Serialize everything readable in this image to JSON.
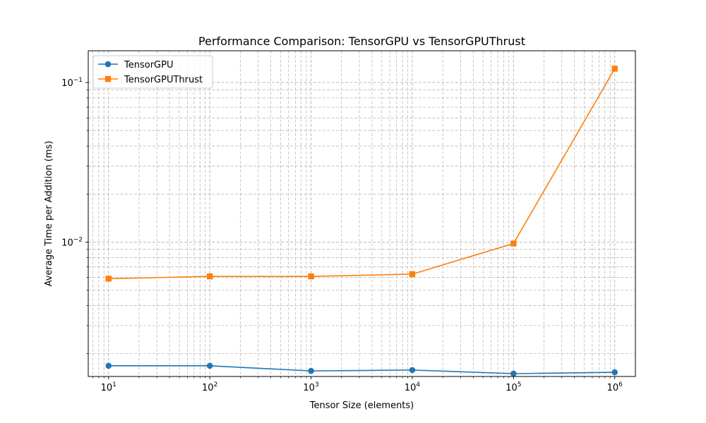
{
  "chart_data": {
    "type": "line",
    "title": "Performance Comparison: TensorGPU vs TensorGPUThrust",
    "xlabel": "Tensor Size (elements)",
    "ylabel": "Average Time per Addition (ms)",
    "x_scale": "log",
    "y_scale": "log",
    "xlim": [
      6.3,
      1600000
    ],
    "ylim": [
      0.00144,
      0.158
    ],
    "x": [
      10,
      100,
      1000,
      10000,
      100000,
      1000000
    ],
    "x_ticks": [
      {
        "value": 10,
        "base": "10",
        "exp": "1"
      },
      {
        "value": 100,
        "base": "10",
        "exp": "2"
      },
      {
        "value": 1000,
        "base": "10",
        "exp": "3"
      },
      {
        "value": 10000,
        "base": "10",
        "exp": "4"
      },
      {
        "value": 100000,
        "base": "10",
        "exp": "5"
      },
      {
        "value": 1000000,
        "base": "10",
        "exp": "6"
      }
    ],
    "y_ticks": [
      {
        "value": 0.01,
        "base": "10",
        "exp": "−2"
      },
      {
        "value": 0.1,
        "base": "10",
        "exp": "−1"
      }
    ],
    "grid": true,
    "grid_minor": true,
    "legend_position": "upper-left",
    "series": [
      {
        "name": "TensorGPU",
        "color": "#1f77b4",
        "marker": "circle",
        "values": [
          0.00168,
          0.00168,
          0.00156,
          0.00158,
          0.0015,
          0.00153
        ]
      },
      {
        "name": "TensorGPUThrust",
        "color": "#ff7f0e",
        "marker": "square",
        "values": [
          0.0059,
          0.0061,
          0.0061,
          0.0063,
          0.0098,
          0.122
        ]
      }
    ]
  }
}
